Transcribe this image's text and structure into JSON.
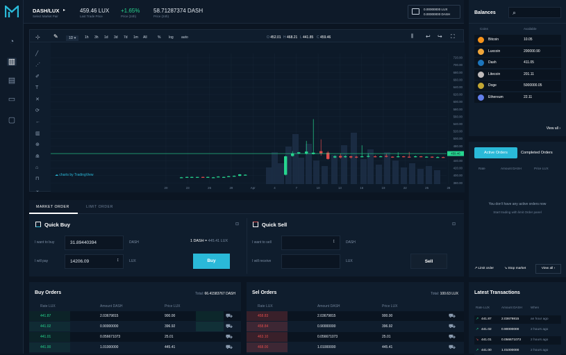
{
  "header": {
    "pair": "DASH/LUX",
    "pair_sub": "Select Market Pair",
    "last_price": "459.46 LUX",
    "last_price_lbl": "Last Trade Price",
    "change": "+1.65%",
    "change_lbl": "Price (24h)",
    "volume": "58.71287374 DASH",
    "volume_lbl": "Price (24h)",
    "wallet_lux": "0.00000000 LUX",
    "wallet_dash": "0.00000000 DASH"
  },
  "chart": {
    "interval": "1D",
    "ranges": [
      "1h",
      "3h",
      "1d",
      "3d",
      "7d",
      "1m",
      "All"
    ],
    "pct": "%",
    "log": "log",
    "auto": "auto",
    "ohlc": [
      {
        "k": "O",
        "v": "452.01"
      },
      {
        "k": "H",
        "v": "468.21"
      },
      {
        "k": "L",
        "v": "441.85"
      },
      {
        "k": "C",
        "v": "459.46"
      }
    ],
    "watermark": "charts by TradingView",
    "price_tag": "459.46",
    "price_ticks": [
      "720.00",
      "700.00",
      "680.00",
      "660.00",
      "640.00",
      "620.00",
      "600.00",
      "580.00",
      "560.00",
      "540.00",
      "520.00",
      "500.00",
      "480.00",
      "460.00",
      "440.00",
      "420.00",
      "400.00",
      "380.00"
    ],
    "date_ticks": [
      "20",
      "23",
      "26",
      "29",
      "Apr",
      "4",
      "7",
      "10",
      "13",
      "16",
      "19",
      "22",
      "25",
      "28",
      "31"
    ],
    "accent": "#2ab9d8",
    "up_color": "#26d68f",
    "down_color": "#e24c4c"
  },
  "tabs": {
    "market": "MARKET ORDER",
    "limit": "LIMIT ORDER"
  },
  "buy": {
    "title": "Quick Buy",
    "want_lbl": "I want to buy",
    "want_val": "31.89440394",
    "want_unit": "DASH",
    "pay_lbl": "I will pay",
    "pay_val": "14206.09",
    "pay_unit": "LUX",
    "rate_left": "1 DASH = ",
    "rate_right": "445.41 LUX",
    "button": "Buy"
  },
  "sell": {
    "title": "Quick Sell",
    "want_lbl": "I want to sell",
    "want_unit": "DASH",
    "recv_lbl": "I will receive",
    "recv_unit": "LUX",
    "button": "Sell"
  },
  "buy_orders": {
    "title": "Buy Orders",
    "total_lbl": "Total: ",
    "total_val": "66.41583767 DASH",
    "cols": [
      "Rate LUX",
      "Amount DASH",
      "Price LUX"
    ],
    "rows": [
      {
        "rate": "441.87",
        "amount": "2.03679815",
        "price": "900.00"
      },
      {
        "rate": "441.02",
        "amount": "0.90000000",
        "price": "396.92"
      },
      {
        "rate": "441.01",
        "amount": "0.056671073",
        "price": "25.01"
      },
      {
        "rate": "441.00",
        "amount": "1.01000000",
        "price": "445.41"
      }
    ]
  },
  "sell_orders": {
    "title": "Sel Orders",
    "total_lbl": "Total: ",
    "total_val": "100.63 LUX",
    "cols": [
      "Rate LUX",
      "Amount DASH",
      "Price LUX"
    ],
    "rows": [
      {
        "rate": "458.83",
        "amount": "2.03679815",
        "price": "900.00"
      },
      {
        "rate": "458.84",
        "amount": "0.90000000",
        "price": "396.92"
      },
      {
        "rate": "463.10",
        "amount": "0.056671073",
        "price": "25.01"
      },
      {
        "rate": "468.00",
        "amount": "1.01000000",
        "price": "445.41"
      }
    ]
  },
  "balances": {
    "title": "Balances",
    "col_coin": "Coins",
    "col_avail": "Available",
    "items": [
      {
        "name": "Bitcoin",
        "amount": "10.05",
        "color": "#f7931a",
        "icon": "bitcoin-icon"
      },
      {
        "name": "Luxcoin",
        "amount": "200000.90",
        "color": "#f0a63a",
        "icon": "luxcoin-icon"
      },
      {
        "name": "Dash",
        "amount": "411.05",
        "color": "#1c75bc",
        "icon": "dash-icon"
      },
      {
        "name": "Litecoin",
        "amount": "201.11",
        "color": "#bfbbbb",
        "icon": "litecoin-icon"
      },
      {
        "name": "Doge",
        "amount": "5000000.05",
        "color": "#c2a633",
        "icon": "doge-icon"
      },
      {
        "name": "Ethereum",
        "amount": "22.11",
        "color": "#627eea",
        "icon": "ethereum-icon"
      }
    ],
    "view_all": "View all"
  },
  "orders_panel": {
    "tab_active": "Active Orders",
    "tab_completed": "Completed Orders",
    "cols": [
      "Rate",
      "Amount DASH",
      "Price LUX"
    ],
    "empty_1": "You don't have any active orders now",
    "empty_2": "Start trading with limit Order panel",
    "limit": "Limit order",
    "stop": "Stop market",
    "view_all": "View all"
  },
  "latest": {
    "title": "Latest Transactions",
    "cols": [
      "Rate LUX",
      "Amount DASH",
      "When"
    ],
    "rows": [
      {
        "dir": "up",
        "rate": "441.87",
        "amount": "2.03679815",
        "when": "an hour ago"
      },
      {
        "dir": "up",
        "rate": "441.02",
        "amount": "0.90000000",
        "when": "2 hours ago"
      },
      {
        "dir": "down",
        "rate": "441.01",
        "amount": "0.056671073",
        "when": "2 hours ago"
      },
      {
        "dir": "up",
        "rate": "441.00",
        "amount": "1.01000000",
        "when": "2 hours ago"
      }
    ]
  }
}
